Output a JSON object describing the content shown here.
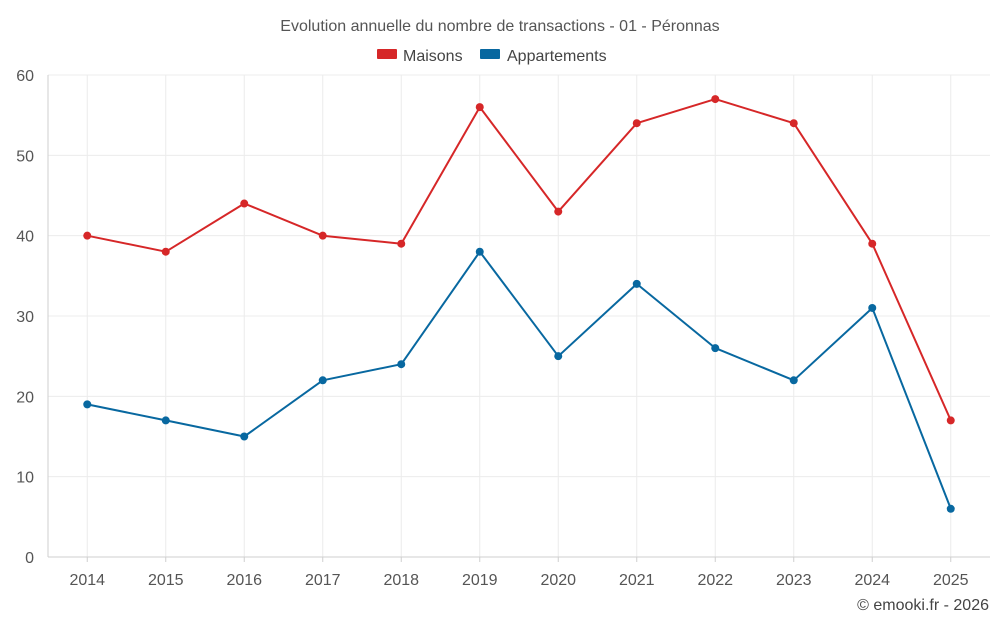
{
  "chart_data": {
    "type": "line",
    "title": "Evolution annuelle du nombre de transactions - 01 - Péronnas",
    "categories": [
      "2014",
      "2015",
      "2016",
      "2017",
      "2018",
      "2019",
      "2020",
      "2021",
      "2022",
      "2023",
      "2024",
      "2025"
    ],
    "series": [
      {
        "name": "Maisons",
        "color": "#d62728",
        "values": [
          40,
          38,
          44,
          40,
          39,
          56,
          43,
          54,
          57,
          54,
          39,
          17
        ]
      },
      {
        "name": "Appartements",
        "color": "#0868a0",
        "values": [
          19,
          17,
          15,
          22,
          24,
          38,
          25,
          34,
          26,
          22,
          31,
          6
        ]
      }
    ],
    "y_ticks": [
      0,
      10,
      20,
      30,
      40,
      50,
      60
    ],
    "ylim": [
      0,
      60
    ],
    "grid": true,
    "legend_position": "top-center",
    "credit": "© emooki.fr - 2026"
  }
}
